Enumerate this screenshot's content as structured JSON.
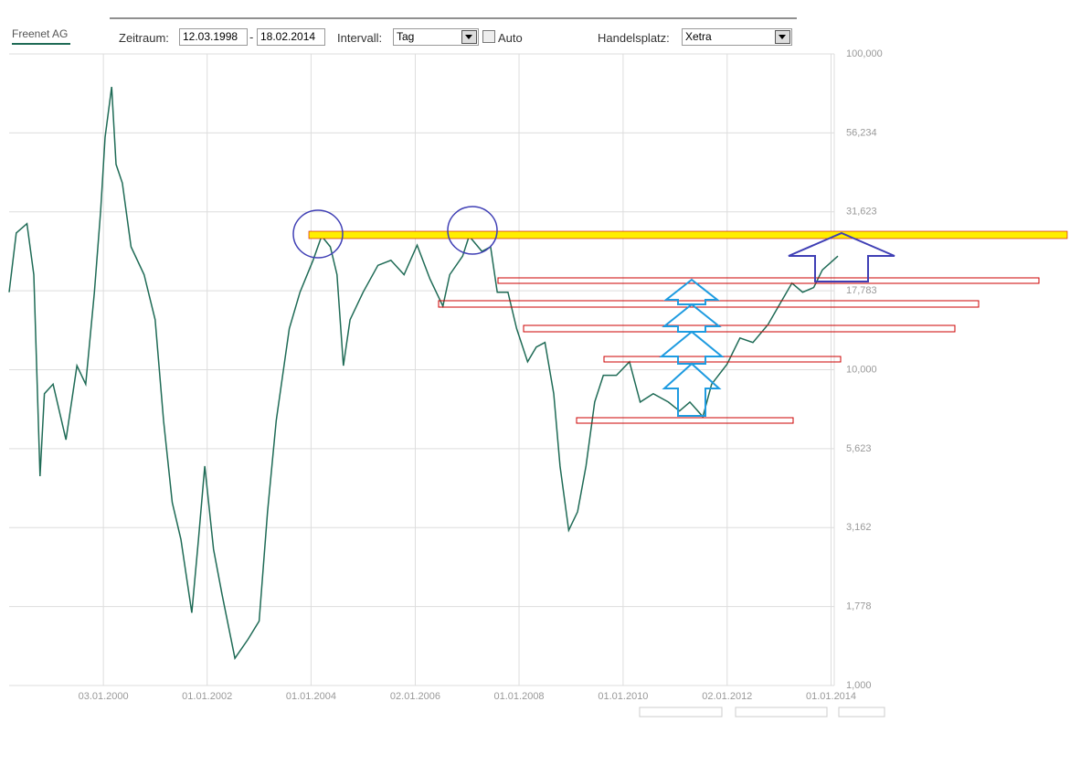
{
  "toolbar": {
    "tab": "Freenet AG",
    "period_label": "Zeitraum:",
    "start": "12.03.1998",
    "separator": "-",
    "end": "18.02.2014",
    "interval_label": "Intervall:",
    "interval": "Tag",
    "auto": "Auto",
    "venue_label": "Handelsplatz:",
    "venue": "Xetra"
  },
  "chart_data": {
    "type": "line",
    "log_y": true,
    "grid": true,
    "color": "#1f6b56",
    "x": [
      "12.03.1998",
      "01.05.1998",
      "15.07.1998",
      "01.09.1998",
      "15.10.1998",
      "15.11.1998",
      "15.01.1999",
      "15.04.1999",
      "01.07.1999",
      "01.09.1999",
      "01.11.1999",
      "15.12.1999",
      "15.01.2000",
      "01.03.2000",
      "01.04.2000",
      "15.05.2000",
      "15.07.2000",
      "15.10.2000",
      "01.01.2001",
      "01.03.2001",
      "01.05.2001",
      "01.07.2001",
      "15.09.2001",
      "01.11.2001",
      "15.12.2001",
      "15.02.2002",
      "15.04.2002",
      "15.07.2002",
      "15.10.2002",
      "01.01.2003",
      "01.03.2003",
      "01.05.2003",
      "01.08.2003",
      "15.10.2003",
      "15.01.2004",
      "15.03.2004",
      "15.05.2004",
      "01.07.2004",
      "15.08.2004",
      "01.10.2004",
      "01.01.2005",
      "15.04.2005",
      "15.07.2005",
      "15.10.2005",
      "15.01.2006",
      "15.04.2006",
      "15.07.2006",
      "01.09.2006",
      "01.12.2006",
      "15.01.2007",
      "15.04.2007",
      "15.06.2007",
      "01.08.2007",
      "15.10.2007",
      "15.12.2007",
      "01.03.2008",
      "01.05.2008",
      "01.07.2008",
      "01.09.2008",
      "15.10.2008",
      "15.12.2008",
      "15.02.2009",
      "15.04.2009",
      "15.06.2009",
      "15.08.2009",
      "15.11.2009",
      "15.02.2010",
      "01.05.2010",
      "01.08.2010",
      "15.11.2010",
      "01.02.2011",
      "15.04.2011",
      "15.07.2011",
      "15.09.2011",
      "01.01.2012",
      "01.04.2012",
      "01.07.2012",
      "15.10.2012",
      "15.01.2013",
      "01.04.2013",
      "15.06.2013",
      "01.09.2013",
      "01.11.2013",
      "18.02.2014"
    ],
    "values": [
      17.6,
      27.1,
      29,
      20,
      4.6,
      8.4,
      9.0,
      6.0,
      10.3,
      9.0,
      17.6,
      32,
      54.5,
      78.6,
      44.7,
      39,
      24.5,
      20,
      14.4,
      6.9,
      3.8,
      2.9,
      1.7,
      2.9,
      4.95,
      2.7,
      1.95,
      1.22,
      1.4,
      1.6,
      3.55,
      6.9,
      13.5,
      17.6,
      22.2,
      26.5,
      24.5,
      20,
      10.3,
      14.4,
      17.6,
      21.4,
      22.2,
      20,
      24.8,
      19.4,
      15.9,
      20,
      22.9,
      26.5,
      23.7,
      24.5,
      17.6,
      17.6,
      13.5,
      10.6,
      11.8,
      12.2,
      8.4,
      4.95,
      3.1,
      3.55,
      4.95,
      7.9,
      9.6,
      9.6,
      10.6,
      7.9,
      8.4,
      7.9,
      7.4,
      7.9,
      7.1,
      9.0,
      10.4,
      12.6,
      12.2,
      13.9,
      16.4,
      18.8,
      17.6,
      18.2,
      20.7,
      22.9
    ],
    "xlim": [
      "12.03.1998",
      "18.02.2014"
    ],
    "xticks": [
      "03.01.2000",
      "01.01.2002",
      "01.01.2004",
      "02.01.2006",
      "01.01.2008",
      "01.01.2010",
      "02.01.2012",
      "01.01.2014"
    ],
    "ylim": [
      1,
      100
    ],
    "yticks": [
      {
        "value": 1,
        "label": "1,000"
      },
      {
        "value": 1.778,
        "label": "1,778"
      },
      {
        "value": 3.162,
        "label": "3,162"
      },
      {
        "value": 5.623,
        "label": "5,623"
      },
      {
        "value": 10,
        "label": "10,000"
      },
      {
        "value": 17.783,
        "label": "17,783"
      },
      {
        "value": 31.623,
        "label": "31,623"
      },
      {
        "value": 56.234,
        "label": "56,234"
      },
      {
        "value": 100,
        "label": "100,000"
      }
    ]
  }
}
